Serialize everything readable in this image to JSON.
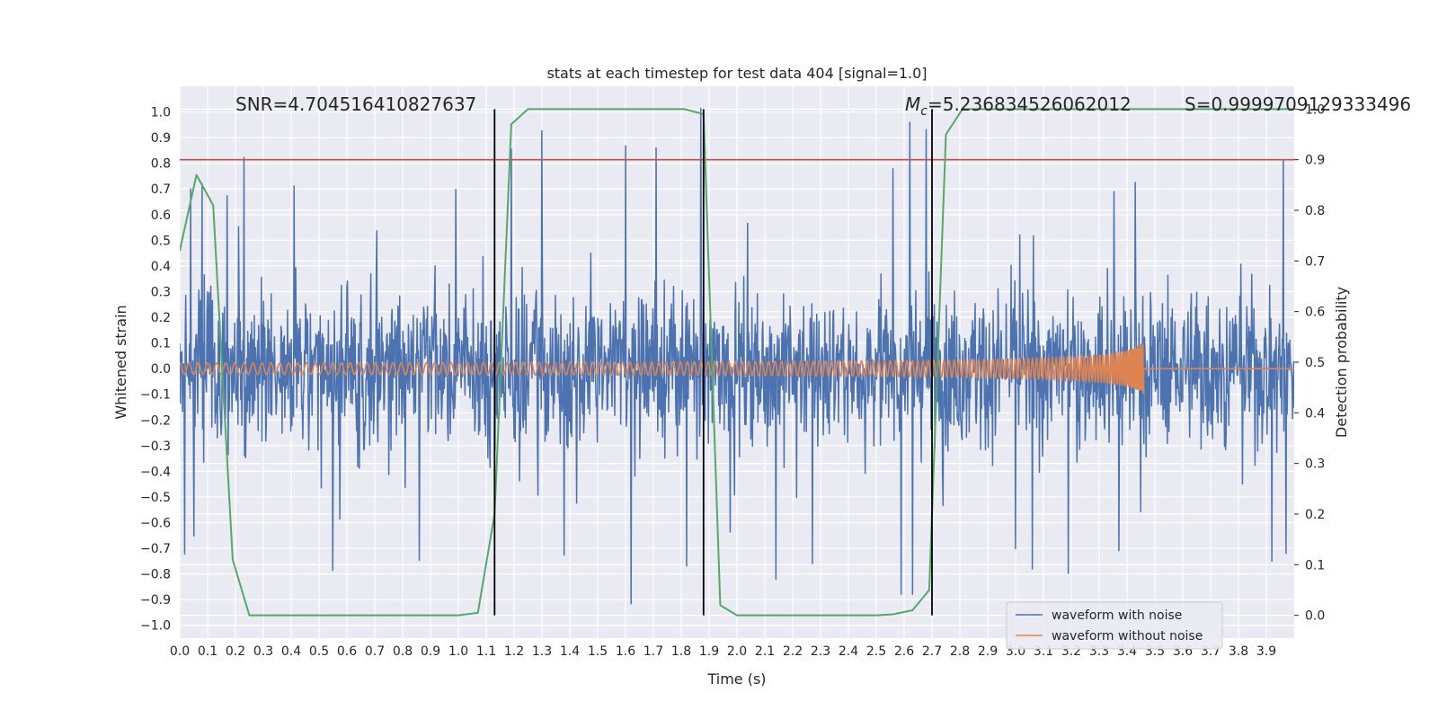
{
  "chart_data": {
    "type": "line",
    "title": "stats at each timestep for test data 404 [signal=1.0]",
    "xlabel": "Time (s)",
    "ylabel": "Whitened strain",
    "y2label": "Detection probability",
    "xlim": [
      0.0,
      4.0
    ],
    "ylim": [
      -1.05,
      1.1
    ],
    "y2lim": [
      -0.045,
      1.045
    ],
    "xticks": [
      0.0,
      0.1,
      0.2,
      0.3,
      0.4,
      0.5,
      0.6,
      0.7,
      0.8,
      0.9,
      1.0,
      1.1,
      1.2,
      1.3,
      1.4,
      1.5,
      1.6,
      1.7,
      1.8,
      1.9,
      2.0,
      2.1,
      2.2,
      2.3,
      2.4,
      2.5,
      2.6,
      2.7,
      2.8,
      2.9,
      3.0,
      3.1,
      3.2,
      3.3,
      3.4,
      3.5,
      3.6,
      3.7,
      3.8,
      3.9
    ],
    "yticks": [
      -1.0,
      -0.9,
      -0.8,
      -0.7,
      -0.6,
      -0.5,
      -0.4,
      -0.3,
      -0.2,
      -0.1,
      0.0,
      0.1,
      0.2,
      0.3,
      0.4,
      0.5,
      0.6,
      0.7,
      0.8,
      0.9,
      1.0
    ],
    "y2ticks": [
      0.0,
      0.1,
      0.2,
      0.3,
      0.4,
      0.5,
      0.6,
      0.7,
      0.8,
      0.9,
      1.0
    ],
    "grid": true,
    "legend_position": "lower-right",
    "annotations": {
      "snr": "SNR=4.704516410827637",
      "mc_symbol": "M",
      "mc_subscript": "c",
      "mc_value": "=5.236834526062012",
      "s": "S=0.9999709129333496"
    },
    "threshold": {
      "value": 0.9,
      "axis": "y2",
      "color": "#c44e52"
    },
    "vertical_lines": [
      1.13,
      1.88,
      2.7
    ],
    "noisy": {
      "name": "waveform with noise",
      "color": "#4c72b0",
      "duration": 4.0,
      "samples": 2048,
      "typical_amplitude": 0.2,
      "spikes": [
        {
          "t": 0.04,
          "y": 0.69
        },
        {
          "t": 0.08,
          "y": 0.74
        },
        {
          "t": 0.23,
          "y": 0.8
        },
        {
          "t": 0.41,
          "y": 0.73
        },
        {
          "t": 0.99,
          "y": 0.72
        },
        {
          "t": 1.19,
          "y": 0.88
        },
        {
          "t": 1.3,
          "y": 0.94
        },
        {
          "t": 1.6,
          "y": 0.89
        },
        {
          "t": 1.71,
          "y": 0.88
        },
        {
          "t": 1.87,
          "y": 0.99
        },
        {
          "t": 2.56,
          "y": 0.81
        },
        {
          "t": 2.62,
          "y": 0.99
        },
        {
          "t": 2.68,
          "y": 0.96
        },
        {
          "t": 3.43,
          "y": 0.8
        },
        {
          "t": 3.96,
          "y": 0.81
        },
        {
          "t": 0.05,
          "y": -0.63
        },
        {
          "t": 0.55,
          "y": -0.81
        },
        {
          "t": 0.86,
          "y": -0.76
        },
        {
          "t": 1.38,
          "y": -0.73
        },
        {
          "t": 1.62,
          "y": -0.93
        },
        {
          "t": 1.82,
          "y": -0.79
        },
        {
          "t": 2.14,
          "y": -0.84
        },
        {
          "t": 2.27,
          "y": -0.78
        },
        {
          "t": 2.59,
          "y": -0.91
        },
        {
          "t": 2.63,
          "y": -0.91
        },
        {
          "t": 3.0,
          "y": -0.74
        },
        {
          "t": 3.06,
          "y": -0.82
        },
        {
          "t": 3.19,
          "y": -0.79
        },
        {
          "t": 3.37,
          "y": -0.73
        },
        {
          "t": 3.92,
          "y": -0.75
        },
        {
          "t": 3.97,
          "y": -0.72
        }
      ]
    },
    "clean": {
      "name": "waveform without noise",
      "color": "#dd8452",
      "merger_time": 3.46,
      "start_amplitude": 0.015,
      "peak_amplitude": 0.1,
      "start_frequency": 30.0
    },
    "probability": {
      "name": "Detection probability",
      "color": "#55a868",
      "x": [
        0.0,
        0.06,
        0.12,
        0.19,
        0.25,
        0.5,
        1.0,
        1.07,
        1.13,
        1.19,
        1.25,
        1.5,
        1.75,
        1.81,
        1.88,
        1.94,
        2.0,
        2.25,
        2.5,
        2.56,
        2.63,
        2.69,
        2.75,
        2.81,
        3.0,
        3.5,
        4.0
      ],
      "y": [
        0.72,
        0.87,
        0.81,
        0.11,
        0.0,
        0.0,
        0.0,
        0.005,
        0.2,
        0.97,
        1.0,
        1.0,
        1.0,
        1.0,
        0.99,
        0.02,
        0.0,
        0.0,
        0.0,
        0.002,
        0.01,
        0.05,
        0.95,
        1.0,
        1.0,
        1.0,
        1.0
      ]
    }
  }
}
